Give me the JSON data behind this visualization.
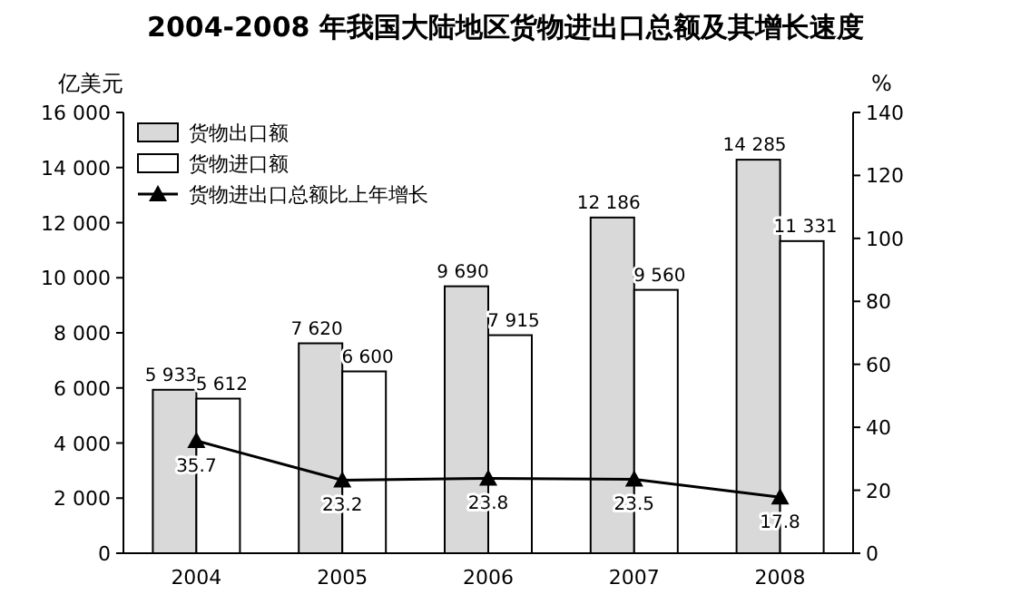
{
  "chart_data": {
    "type": "bar",
    "title": "2004-2008 年我国大陆地区货物进出口总额及其增长速度",
    "ylabel": "亿美元",
    "y2label": "%",
    "categories": [
      "2004",
      "2005",
      "2006",
      "2007",
      "2008"
    ],
    "series": [
      {
        "name": "货物出口额",
        "color": "#d9d9d9",
        "values": [
          5933,
          7620,
          9690,
          12186,
          14285
        ],
        "value_labels": [
          "5 933",
          "7 620",
          "9 690",
          "12 186",
          "14 285"
        ]
      },
      {
        "name": "货物进口额",
        "color": "#ffffff",
        "values": [
          5612,
          6600,
          7915,
          9560,
          11331
        ],
        "value_labels": [
          "5 612",
          "6 600",
          "7 915",
          "9 560",
          "11 331"
        ]
      },
      {
        "name": "货物进出口总额比上年增长",
        "type": "line",
        "axis": "y2",
        "color": "#000000",
        "marker": "triangle",
        "values": [
          35.7,
          23.2,
          23.8,
          23.5,
          17.8
        ],
        "value_labels": [
          "35.7",
          "23.2",
          "23.8",
          "23.5",
          "17.8"
        ]
      }
    ],
    "ylim": [
      0,
      16000
    ],
    "yticks": [
      0,
      {
        "value": 2000,
        "label": "2 000"
      },
      {
        "value": 4000,
        "label": "4 000"
      },
      {
        "value": 6000,
        "label": "6 000"
      },
      {
        "value": 8000,
        "label": "8 000"
      },
      {
        "value": 10000,
        "label": "10 000"
      },
      {
        "value": 12000,
        "label": "12 000"
      },
      {
        "value": 14000,
        "label": "14 000"
      },
      {
        "value": 16000,
        "label": "16 000"
      }
    ],
    "y2lim": [
      0,
      140
    ],
    "y2ticks": [
      0,
      20,
      40,
      60,
      80,
      100,
      120,
      140
    ],
    "legend": "top left"
  }
}
